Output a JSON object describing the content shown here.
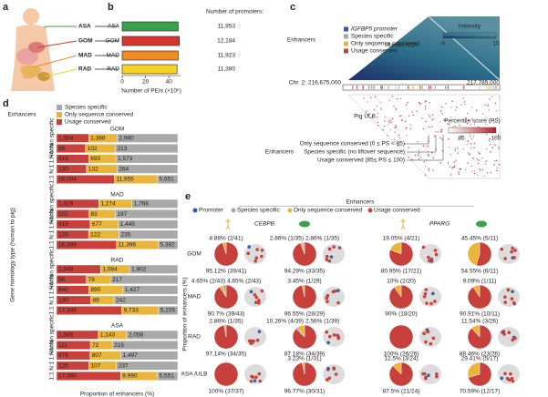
{
  "panel_labels": [
    "a",
    "b",
    "c",
    "d",
    "e"
  ],
  "panel_a": {
    "tissues": [
      "ASA",
      "GOM",
      "MAD",
      "RAD"
    ]
  },
  "panel_c": {
    "human_label": "Human ASA",
    "pig_label": "Pig ULB",
    "legend_title": "Enhancers",
    "legend": [
      {
        "name": "IGFBP5 promoter",
        "color": "#2f5fa8"
      },
      {
        "name": "Species specific",
        "color": "#a9a9a9"
      },
      {
        "name": "Only sequence conserved",
        "color": "#e9b53a"
      },
      {
        "name": "Usage conserved",
        "color": "#c8403c"
      }
    ],
    "intensity_title": "Intensity",
    "intensity_ticks": [
      0,
      15
    ],
    "coord_left": "Chr. 2: 216,675,000",
    "coord_right": "217,785,000",
    "ps_title": "Percentile score (PS)",
    "ps_ticks": [
      85,
      100
    ],
    "bottom_title": "Enhancers",
    "bottom_items": [
      "Only sequence conserved (0 ≤ PS < 85)",
      "Species specific (no liftover sequence)",
      "Usage conserved (85≤ PS ≤ 100)"
    ]
  },
  "panel_e": {
    "legend_title": "Enhancers",
    "legend": [
      {
        "name": "Promoter",
        "color": "#2f5fa8"
      },
      {
        "name": "Species specific",
        "color": "#a9a9a9"
      },
      {
        "name": "Only sequence conserved",
        "color": "#e9b53a"
      },
      {
        "name": "Usage conserved",
        "color": "#c8403c"
      }
    ],
    "columns": [
      "CEBPB",
      "PPARG"
    ],
    "rows": [
      "GOM",
      "MAD",
      "RAD",
      "ASA /ULB"
    ],
    "ylabel": "Proportion of enhancers (%)"
  },
  "chart_data": [
    {
      "type": "hbar",
      "categories": [
        "ASA",
        "GOM",
        "MAD",
        "RAD"
      ],
      "values": [
        48,
        49,
        48,
        47
      ],
      "colors": [
        "#3aa04a",
        "#d7342e",
        "#f08a24",
        "#f5d327"
      ],
      "xlim": [
        0,
        50
      ],
      "xticks": [
        0,
        20,
        40
      ],
      "xlabel": "Number of PEIs (×10⁶)",
      "promoters_title": "Number of promoters:",
      "promoters": [
        "11,953",
        "12,184",
        "11,923",
        "11,380"
      ]
    },
    {
      "type": "stacked_panels",
      "legend_title": "Enhancers",
      "ylabel": "Gene homology type (human to pig)",
      "xlabel": "Proportion of enhancers (%)",
      "series": [
        {
          "name": "Usage conserved",
          "color": "#c8403c"
        },
        {
          "name": "Only sequence conserved",
          "color": "#e9b53a"
        },
        {
          "name": "Species specific",
          "color": "#a9a9a9"
        }
      ],
      "panels": [
        {
          "title": "GOM",
          "categories": [
            "Human specific",
            "N:N",
            "1:N",
            "N:1",
            "1:1"
          ],
          "values": [
            [
              1564,
              99,
              816,
              130,
              16004
            ],
            [
              1388,
              102,
              693,
              132,
              11955
            ],
            [
              2960,
              213,
              1573,
              264,
              5651
            ]
          ],
          "value_labels": [
            [
              "1,564",
              "99",
              "816",
              "130",
              "16,004"
            ],
            [
              "1,388",
              "102",
              "693",
              "132",
              "11,955"
            ],
            [
              "2,960",
              "213",
              "1,573",
              "264",
              "5,651"
            ]
          ]
        },
        {
          "title": "MAD",
          "categories": [
            "Human specific",
            "N:N",
            "1:N",
            "N:1",
            "1:1"
          ],
          "values": [
            [
              1629,
              102,
              815,
              128,
              16389
            ],
            [
              1274,
              83,
              677,
              122,
              11396
            ],
            [
              1766,
              197,
              1445,
              235,
              5382
            ]
          ],
          "value_labels": [
            [
              "1,629",
              "102",
              "815",
              "128",
              "16,389"
            ],
            [
              "1,274",
              "83",
              "677",
              "122",
              "11,396"
            ],
            [
              "1,766",
              "197",
              "1,445",
              "235",
              "5,382"
            ]
          ]
        },
        {
          "title": "RAD",
          "categories": [
            "Human specific",
            "N:N",
            "1:N",
            "N:1",
            "1:1"
          ],
          "values": [
            [
              1649,
              96,
              840,
              130,
              17346
            ],
            [
              1084,
              78,
              890,
              88,
              9733
            ],
            [
              1802,
              217,
              1427,
              242,
              5155
            ]
          ],
          "value_labels": [
            [
              "1,649",
              "96",
              "840",
              "130",
              "17,346"
            ],
            [
              "1,084",
              "78",
              "890",
              "88",
              "9,733"
            ],
            [
              "1,802",
              "217",
              "1,427",
              "242",
              "5,155"
            ]
          ]
        },
        {
          "title": "ASA",
          "categories": [
            "Human specific",
            "N:N",
            "1:N",
            "N:1",
            "1:1"
          ],
          "values": [
            [
              1685,
              111,
              879,
              125,
              17360
            ],
            [
              1143,
              72,
              807,
              107,
              9990
            ],
            [
              2058,
              215,
              1497,
              237,
              5551
            ]
          ],
          "value_labels": [
            [
              "1,685",
              "111",
              "879",
              "125",
              "17,360"
            ],
            [
              "1,143",
              "72",
              "807",
              "107",
              "9,990"
            ],
            [
              "2,058",
              "215",
              "1,497",
              "237",
              "5,551"
            ]
          ]
        }
      ]
    },
    {
      "type": "pie",
      "values": [
        4.88,
        95.12
      ],
      "value_labels": [
        "4.88% (2/41)",
        "95.12% (39/41)"
      ],
      "colors": [
        "#e9b53a",
        "#c8403c"
      ]
    },
    {
      "type": "pie",
      "values": [
        2.86,
        2.86,
        94.29
      ],
      "value_labels": [
        "2.86% (1/35)",
        "2.86% (1/35)",
        "94.29% (33/35)"
      ],
      "colors": [
        "#a9a9a9",
        "#e9b53a",
        "#c8403c"
      ]
    },
    {
      "type": "pie",
      "values": [
        19.05,
        80.95
      ],
      "value_labels": [
        "19.05% (4/21)",
        "80.95% (17/21)"
      ],
      "colors": [
        "#e9b53a",
        "#c8403c"
      ]
    },
    {
      "type": "pie",
      "values": [
        45.45,
        54.55
      ],
      "value_labels": [
        "45.45% (5/11)",
        "54.55% (6/11)"
      ],
      "colors": [
        "#e9b53a",
        "#c8403c"
      ]
    },
    {
      "type": "pie",
      "values": [
        4.65,
        4.65,
        90.7
      ],
      "value_labels": [
        "4.65% (2/43)",
        "4.65% (2/43)",
        "90.7% (39/43)"
      ],
      "colors": [
        "#a9a9a9",
        "#e9b53a",
        "#c8403c"
      ]
    },
    {
      "type": "pie",
      "values": [
        3.45,
        96.55
      ],
      "value_labels": [
        "3.45% (1/29)",
        "96.55% (28/29)"
      ],
      "colors": [
        "#e9b53a",
        "#c8403c"
      ]
    },
    {
      "type": "pie",
      "values": [
        10,
        90
      ],
      "value_labels": [
        "10% (2/20)",
        "90% (18/20)"
      ],
      "colors": [
        "#e9b53a",
        "#c8403c"
      ]
    },
    {
      "type": "pie",
      "values": [
        9.09,
        90.91
      ],
      "value_labels": [
        "9.09% (1/11)",
        "90.91% (10/11)"
      ],
      "colors": [
        "#e9b53a",
        "#c8403c"
      ]
    },
    {
      "type": "pie",
      "values": [
        2.86,
        97.14
      ],
      "value_labels": [
        "2.86% (1/35)",
        "97.14% (34/35)"
      ],
      "colors": [
        "#e9b53a",
        "#c8403c"
      ]
    },
    {
      "type": "pie",
      "values": [
        10.26,
        2.56,
        87.18
      ],
      "value_labels": [
        "10.26% (4/39)",
        "2.56% (1/39)",
        "87.18% (34/39)"
      ],
      "colors": [
        "#e9b53a",
        "#a9a9a9",
        "#c8403c"
      ]
    },
    {
      "type": "pie",
      "values": [
        100
      ],
      "value_labels": [
        "100% (26/26)"
      ],
      "colors": [
        "#c8403c"
      ]
    },
    {
      "type": "pie",
      "values": [
        11.54,
        88.46
      ],
      "value_labels": [
        "11.54% (3/26)",
        "88.46% (23/26)"
      ],
      "colors": [
        "#e9b53a",
        "#c8403c"
      ]
    },
    {
      "type": "pie",
      "values": [
        100
      ],
      "value_labels": [
        "100% (37/37)"
      ],
      "colors": [
        "#c8403c"
      ]
    },
    {
      "type": "pie",
      "values": [
        3.23,
        96.77
      ],
      "value_labels": [
        "3.23% (1/31)",
        "96.77% (30/31)"
      ],
      "colors": [
        "#e9b53a",
        "#c8403c"
      ]
    },
    {
      "type": "pie",
      "values": [
        12.5,
        87.5
      ],
      "value_labels": [
        "12.5% (3/24)",
        "87.5% (21/24)"
      ],
      "colors": [
        "#e9b53a",
        "#c8403c"
      ]
    },
    {
      "type": "pie",
      "values": [
        29.41,
        70.59
      ],
      "value_labels": [
        "29.41% (5/17)",
        "70.59% (12/17)"
      ],
      "colors": [
        "#e9b53a",
        "#c8403c"
      ]
    }
  ]
}
